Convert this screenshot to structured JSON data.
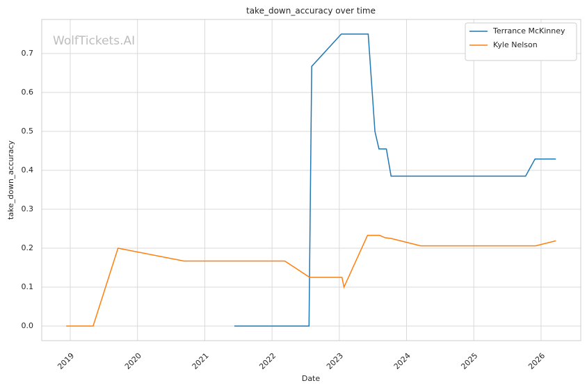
{
  "chart_data": {
    "type": "line",
    "title": "take_down_accuracy over time",
    "x_label": "Date",
    "y_label": "take_down_accuracy",
    "watermark": "WolfTickets.AI",
    "xlim": [
      2018.576,
      2026.59
    ],
    "xticks": [
      2019,
      2020,
      2021,
      2022,
      2023,
      2024,
      2025,
      2026
    ],
    "ylim": [
      -0.0375,
      0.7875
    ],
    "yticks": [
      {
        "value": 0,
        "label": "0.0"
      },
      0.1,
      0.2,
      0.3,
      0.4,
      0.5,
      0.6,
      0.7
    ],
    "grid": true,
    "legend": "upper right",
    "series": [
      {
        "name": "Terrance McKinney",
        "color": "#1f77b4",
        "x": [
          2021.44,
          2022.55,
          2022.59,
          2023.03,
          2023.43,
          2023.53,
          2023.59,
          2023.7,
          2023.77,
          2025.77,
          2025.91,
          2026.22
        ],
        "values": [
          0,
          0,
          0.667,
          0.75,
          0.75,
          0.5,
          0.455,
          0.455,
          0.385,
          0.385,
          0.429,
          0.429
        ]
      },
      {
        "name": "Kyle Nelson",
        "color": "#ff7f0e",
        "x": [
          2018.94,
          2019.34,
          2019.71,
          2020.69,
          2022.19,
          2022.56,
          2023.04,
          2023.07,
          2023.42,
          2023.6,
          2023.68,
          2023.77,
          2024.21,
          2025.92,
          2026.22
        ],
        "values": [
          0,
          0,
          0.2,
          0.167,
          0.167,
          0.125,
          0.125,
          0.1,
          0.233,
          0.233,
          0.227,
          0.225,
          0.206,
          0.206,
          0.219
        ]
      }
    ]
  }
}
